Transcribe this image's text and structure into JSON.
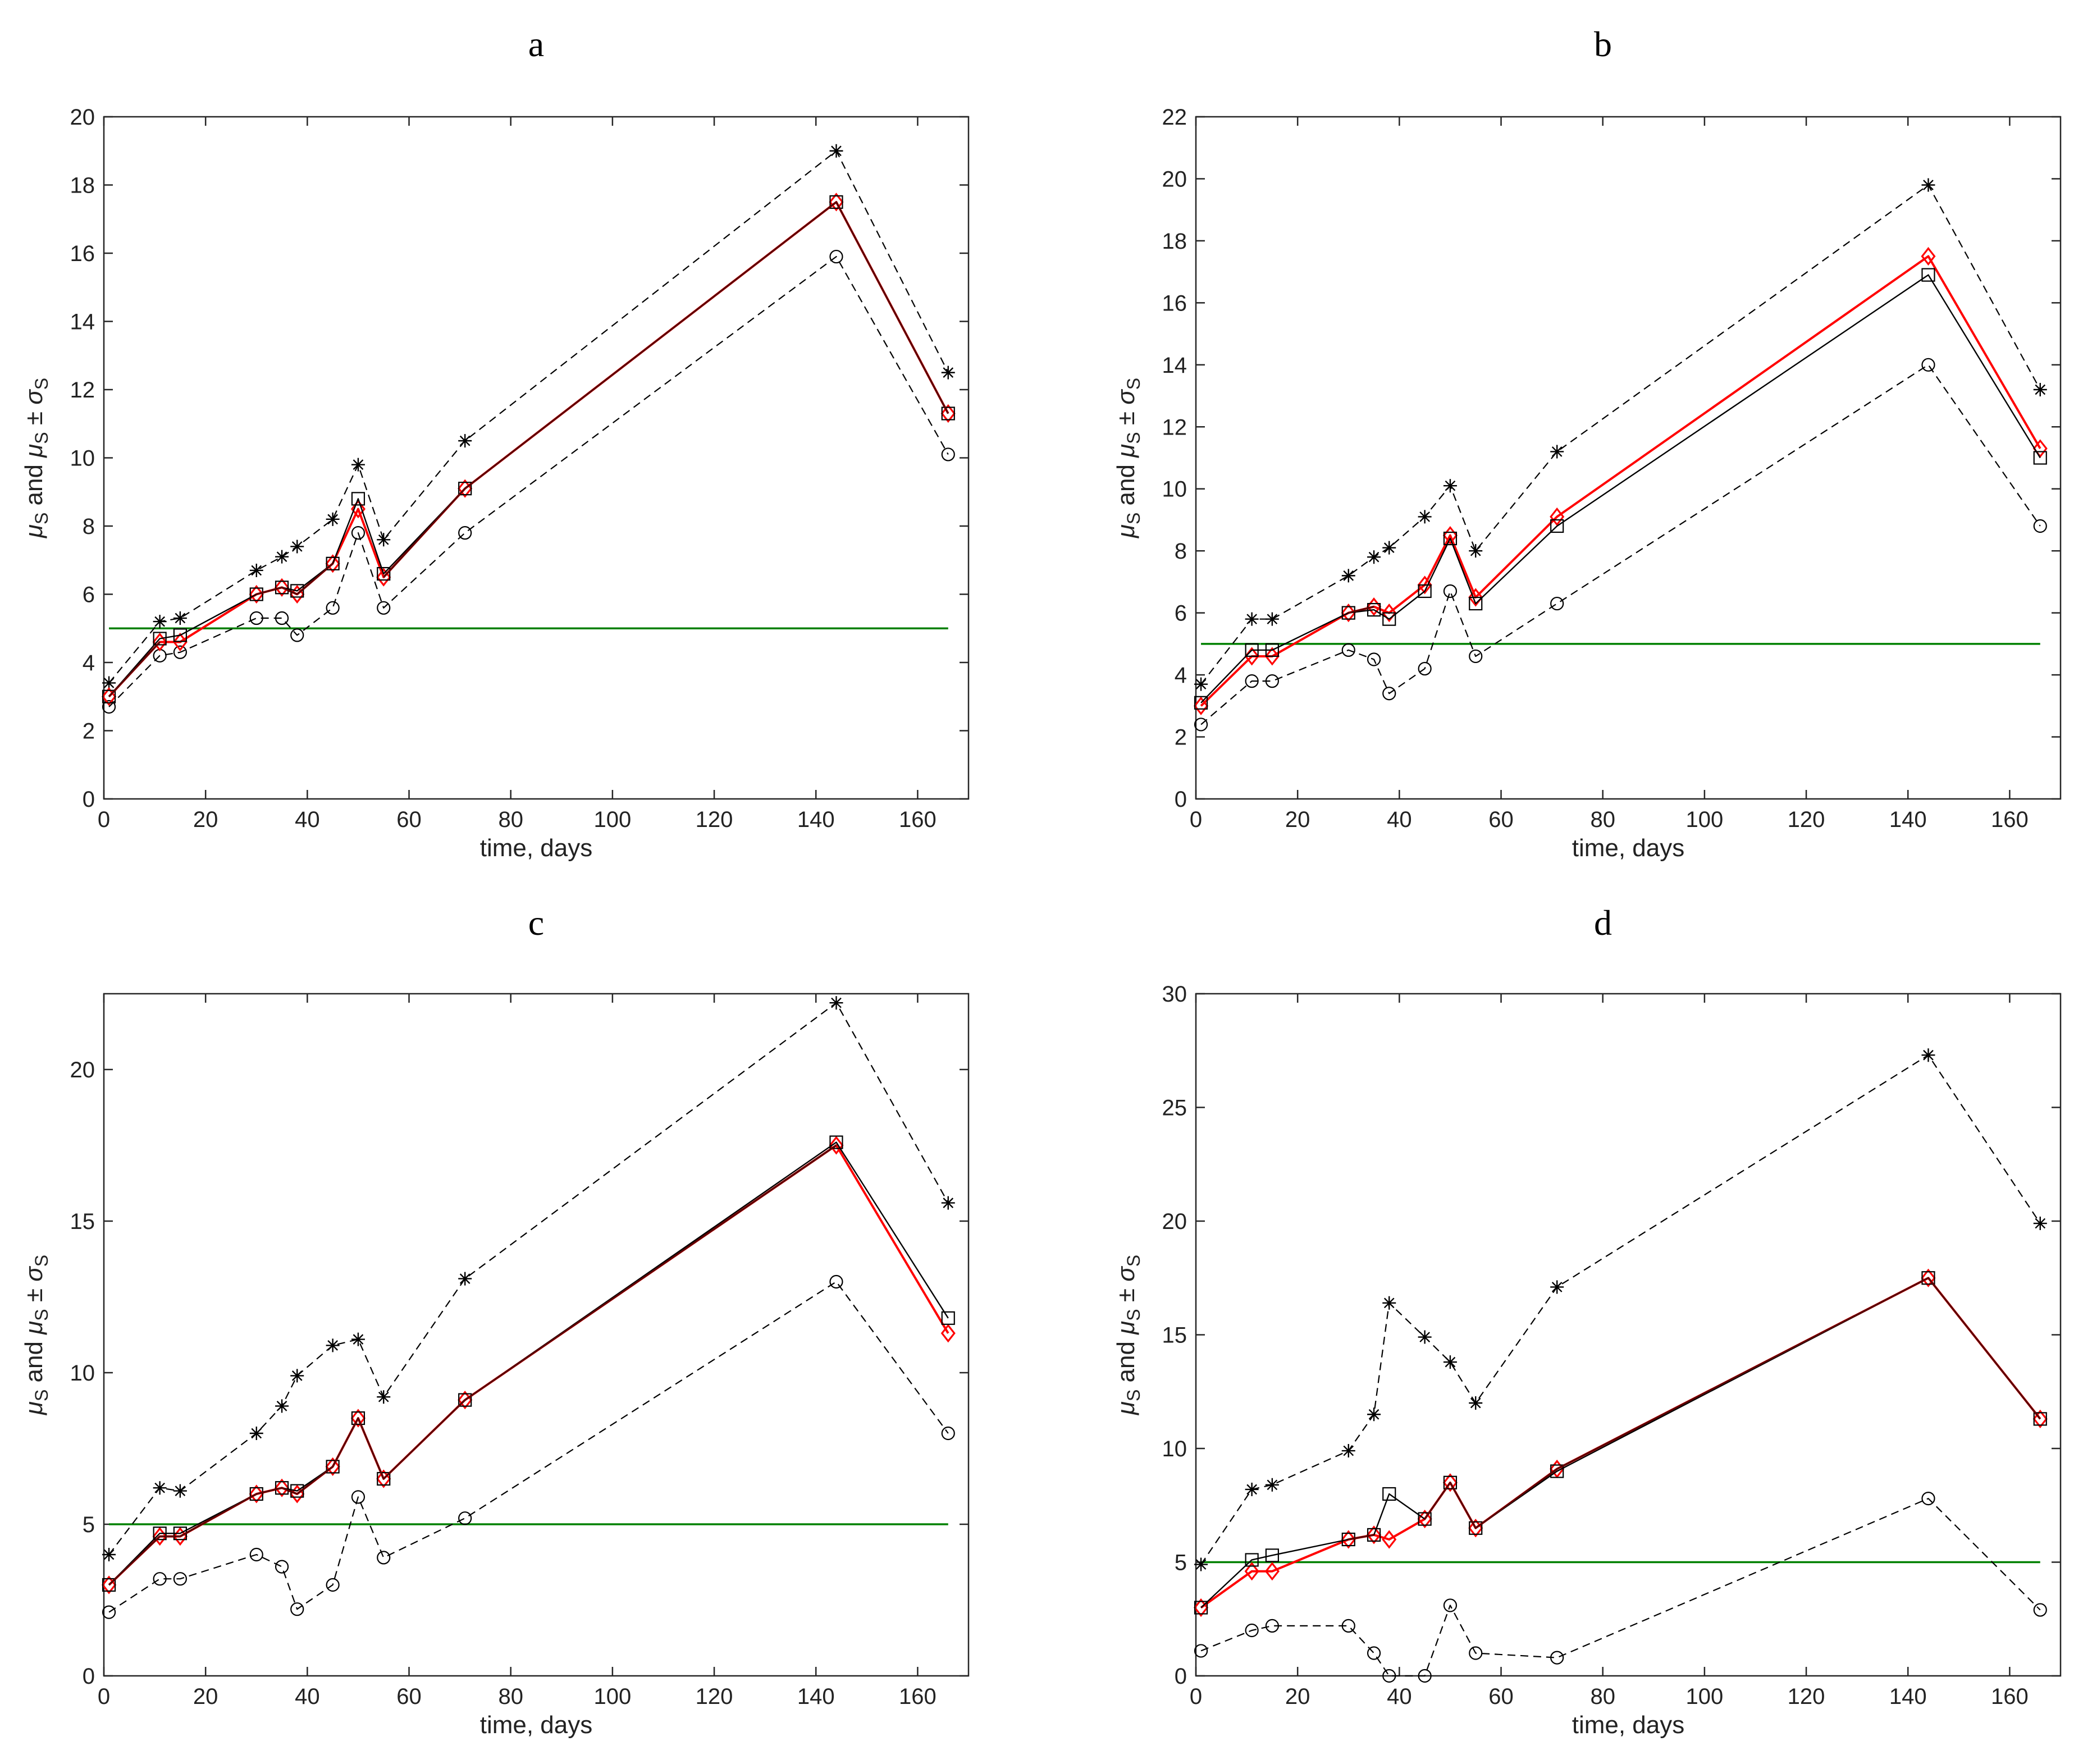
{
  "figure": {
    "x_values": [
      1,
      11,
      15,
      30,
      35,
      38,
      45,
      50,
      55,
      71,
      144,
      166
    ],
    "xlabel": "time, days",
    "ylabel_parts": {
      "mu": "μ",
      "sub": "S",
      "and": " and ",
      "pm": " ± ",
      "sigma": "σ"
    },
    "colors": {
      "red": "#ff0000",
      "black": "#000000",
      "dark": "#5a0000",
      "green": "#008000",
      "dashed": "#000000"
    }
  },
  "chart_data": [
    {
      "type": "line",
      "label": "a",
      "title": "a",
      "xlabel": "time, days",
      "ylabel": "μS and μS ± σS",
      "xlim": [
        0,
        170
      ],
      "ylim": [
        0,
        20
      ],
      "xticks": [
        0,
        20,
        40,
        60,
        80,
        100,
        120,
        140,
        160
      ],
      "yticks": [
        0,
        2,
        4,
        6,
        8,
        10,
        12,
        14,
        16,
        18,
        20
      ],
      "threshold": 5,
      "x": [
        1,
        11,
        15,
        30,
        35,
        38,
        45,
        50,
        55,
        71,
        144,
        166
      ],
      "series": [
        {
          "name": "mu_plus_sigma",
          "marker": "asterisk",
          "values": [
            3.4,
            5.2,
            5.3,
            6.7,
            7.1,
            7.4,
            8.2,
            9.8,
            7.6,
            10.5,
            19.0,
            12.5
          ]
        },
        {
          "name": "mu_minus_sigma",
          "marker": "circle",
          "values": [
            2.7,
            4.2,
            4.3,
            5.3,
            5.3,
            4.8,
            5.6,
            7.8,
            5.6,
            7.8,
            15.9,
            10.1
          ]
        },
        {
          "name": "mu_black",
          "marker": "square",
          "values": [
            3.0,
            4.7,
            4.8,
            6.0,
            6.2,
            6.1,
            6.9,
            8.8,
            6.6,
            9.1,
            17.5,
            11.3
          ]
        },
        {
          "name": "mu_red",
          "marker": "diamond",
          "values": [
            3.0,
            4.6,
            4.6,
            6.0,
            6.2,
            6.0,
            6.9,
            8.5,
            6.5,
            9.1,
            17.5,
            11.3
          ]
        }
      ]
    },
    {
      "type": "line",
      "label": "b",
      "title": "b",
      "xlabel": "time, days",
      "ylabel": "μS and μS ± σS",
      "xlim": [
        0,
        170
      ],
      "ylim": [
        0,
        22
      ],
      "xticks": [
        0,
        20,
        40,
        60,
        80,
        100,
        120,
        140,
        160
      ],
      "yticks": [
        0,
        2,
        4,
        6,
        8,
        10,
        12,
        14,
        16,
        18,
        20,
        22
      ],
      "threshold": 5,
      "x": [
        1,
        11,
        15,
        30,
        35,
        38,
        45,
        50,
        55,
        71,
        144,
        166
      ],
      "series": [
        {
          "name": "mu_plus_sigma",
          "marker": "asterisk",
          "values": [
            3.7,
            5.8,
            5.8,
            7.2,
            7.8,
            8.1,
            9.1,
            10.1,
            8.0,
            11.2,
            19.8,
            13.2
          ]
        },
        {
          "name": "mu_minus_sigma",
          "marker": "circle",
          "values": [
            2.4,
            3.8,
            3.8,
            4.8,
            4.5,
            3.4,
            4.2,
            6.7,
            4.6,
            6.3,
            14.0,
            8.8
          ]
        },
        {
          "name": "mu_black",
          "marker": "square",
          "values": [
            3.1,
            4.8,
            4.8,
            6.0,
            6.1,
            5.8,
            6.7,
            8.4,
            6.3,
            8.8,
            16.9,
            11.0
          ]
        },
        {
          "name": "mu_red",
          "marker": "diamond",
          "values": [
            3.0,
            4.6,
            4.6,
            6.0,
            6.2,
            6.0,
            6.9,
            8.5,
            6.5,
            9.1,
            17.5,
            11.3
          ]
        }
      ]
    },
    {
      "type": "line",
      "label": "c",
      "title": "c",
      "xlabel": "time, days",
      "ylabel": "μS and μS ± σS",
      "xlim": [
        0,
        170
      ],
      "ylim": [
        0,
        22.5
      ],
      "xticks": [
        0,
        20,
        40,
        60,
        80,
        100,
        120,
        140,
        160
      ],
      "yticks": [
        0,
        5,
        10,
        15,
        20
      ],
      "threshold": 5,
      "x": [
        1,
        11,
        15,
        30,
        35,
        38,
        45,
        50,
        55,
        71,
        144,
        166
      ],
      "series": [
        {
          "name": "mu_plus_sigma",
          "marker": "asterisk",
          "values": [
            4.0,
            6.2,
            6.1,
            8.0,
            8.9,
            9.9,
            10.9,
            11.1,
            9.2,
            13.1,
            22.2,
            15.6
          ]
        },
        {
          "name": "mu_minus_sigma",
          "marker": "circle",
          "values": [
            2.1,
            3.2,
            3.2,
            4.0,
            3.6,
            2.2,
            3.0,
            5.9,
            3.9,
            5.2,
            13.0,
            8.0
          ]
        },
        {
          "name": "mu_black",
          "marker": "square",
          "values": [
            3.0,
            4.7,
            4.7,
            6.0,
            6.2,
            6.1,
            6.9,
            8.5,
            6.5,
            9.1,
            17.6,
            11.8
          ]
        },
        {
          "name": "mu_red",
          "marker": "diamond",
          "values": [
            3.0,
            4.6,
            4.6,
            6.0,
            6.2,
            6.0,
            6.9,
            8.5,
            6.5,
            9.1,
            17.5,
            11.3
          ]
        }
      ]
    },
    {
      "type": "line",
      "label": "d",
      "title": "d",
      "xlabel": "time, days",
      "ylabel": "μS and μS ± σS",
      "xlim": [
        0,
        170
      ],
      "ylim": [
        0,
        30
      ],
      "xticks": [
        0,
        20,
        40,
        60,
        80,
        100,
        120,
        140,
        160
      ],
      "yticks": [
        0,
        5,
        10,
        15,
        20,
        25,
        30
      ],
      "threshold": 5,
      "x": [
        1,
        11,
        15,
        30,
        35,
        38,
        45,
        50,
        55,
        71,
        144,
        166
      ],
      "series": [
        {
          "name": "mu_plus_sigma",
          "marker": "asterisk",
          "values": [
            4.9,
            8.2,
            8.4,
            9.9,
            11.5,
            16.4,
            14.9,
            13.8,
            12.0,
            17.1,
            27.3,
            19.9
          ]
        },
        {
          "name": "mu_minus_sigma",
          "marker": "circle",
          "values": [
            1.1,
            2.0,
            2.2,
            2.2,
            1.0,
            0.0,
            0.0,
            3.1,
            1.0,
            0.8,
            7.8,
            2.9
          ]
        },
        {
          "name": "mu_black",
          "marker": "square",
          "values": [
            3.0,
            5.1,
            5.3,
            6.0,
            6.2,
            8.0,
            6.9,
            8.5,
            6.5,
            9.0,
            17.5,
            11.3
          ]
        },
        {
          "name": "mu_red",
          "marker": "diamond",
          "values": [
            3.0,
            4.6,
            4.6,
            6.0,
            6.2,
            6.0,
            6.9,
            8.5,
            6.5,
            9.1,
            17.5,
            11.3
          ]
        }
      ]
    }
  ]
}
